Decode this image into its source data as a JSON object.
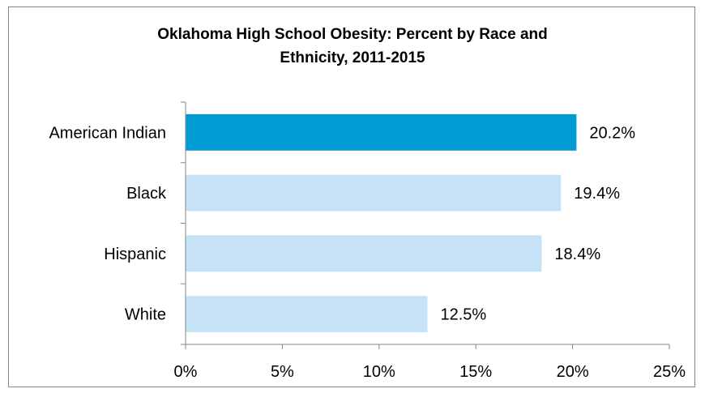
{
  "chart_data": {
    "type": "bar",
    "orientation": "horizontal",
    "title_lines": [
      "Oklahoma High School Obesity: Percent by Race and",
      "Ethnicity, 2011-2015"
    ],
    "categories": [
      "American Indian",
      "Black",
      "Hispanic",
      "White"
    ],
    "values": [
      20.2,
      19.4,
      18.4,
      12.5
    ],
    "value_labels": [
      "20.2%",
      "19.4%",
      "18.4%",
      "12.5%"
    ],
    "xlim": [
      0,
      25
    ],
    "x_ticks": [
      0,
      5,
      10,
      15,
      20,
      25
    ],
    "x_tick_labels": [
      "0%",
      "5%",
      "10%",
      "15%",
      "20%",
      "25%"
    ],
    "grid": false,
    "legend": "none",
    "colors": {
      "highlight": "#009bd5",
      "default": "#c6e2f7",
      "axis": "#868686"
    },
    "highlighted_category": "American Indian"
  }
}
